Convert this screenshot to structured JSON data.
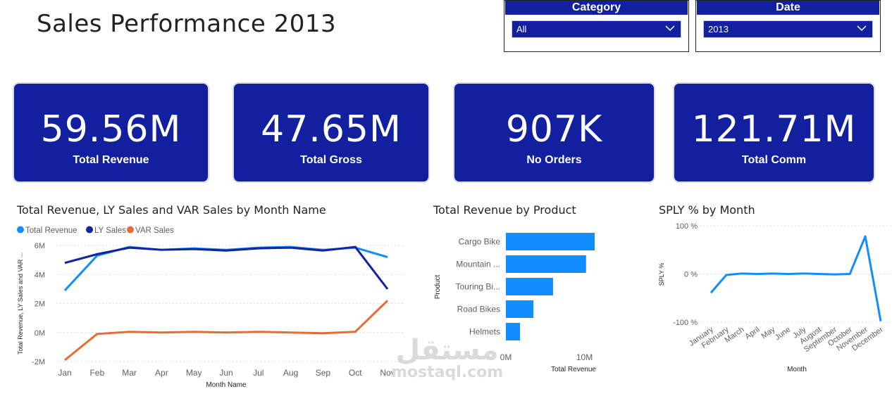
{
  "page": {
    "title": "Sales Performance 2013"
  },
  "slicers": [
    {
      "header": "Category",
      "value": "All"
    },
    {
      "header": "Date",
      "value": "2013"
    }
  ],
  "cards": [
    {
      "value": "59.56M",
      "label": "Total Revenue"
    },
    {
      "value": "47.65M",
      "label": "Total Gross"
    },
    {
      "value": "907K",
      "label": "No Orders"
    },
    {
      "value": "121.71M",
      "label": "Total Comm"
    }
  ],
  "colors": {
    "card_bg": "#1220a0",
    "total_revenue": "#118dff",
    "ly_sales": "#12239e",
    "var_sales": "#e66c37",
    "bar": "#118dff",
    "sply": "#118dff"
  },
  "chart_data": [
    {
      "type": "line",
      "title": "Total Revenue, LY Sales and VAR Sales by Month Name",
      "xlabel": "Month Name",
      "ylabel": "Total Revenue, LY Sales and VAR ...",
      "categories": [
        "Jan",
        "Feb",
        "Mar",
        "Apr",
        "May",
        "Jun",
        "Jul",
        "Aug",
        "Sep",
        "Oct",
        "Nov"
      ],
      "yticks": [
        "6M",
        "4M",
        "2M",
        "0M",
        "-2M"
      ],
      "ylim": [
        -2,
        6
      ],
      "legend": "top-left",
      "grid": true,
      "series": [
        {
          "name": "Total Revenue",
          "color": "#118dff",
          "values": [
            2.9,
            5.3,
            5.9,
            5.7,
            5.8,
            5.7,
            5.85,
            5.9,
            5.7,
            5.85,
            5.2
          ]
        },
        {
          "name": "LY Sales",
          "color": "#12239e",
          "values": [
            4.8,
            5.4,
            5.85,
            5.7,
            5.75,
            5.65,
            5.8,
            5.85,
            5.65,
            5.9,
            3.0
          ]
        },
        {
          "name": "VAR Sales",
          "color": "#e66c37",
          "values": [
            -1.9,
            -0.1,
            0.05,
            0.0,
            0.05,
            0.0,
            0.05,
            0.0,
            -0.05,
            0.05,
            2.2
          ]
        }
      ]
    },
    {
      "type": "bar",
      "orientation": "horizontal",
      "title": "Total Revenue by Product",
      "xlabel": "Total Revenue",
      "ylabel": "Product",
      "categories": [
        "Cargo Bike",
        "Mountain ...",
        "Touring Bi...",
        "Road Bikes",
        "Helmets"
      ],
      "values": [
        11.3,
        10.2,
        6.0,
        3.5,
        1.8
      ],
      "xticks": [
        "0M",
        "10M"
      ],
      "xlim": [
        0,
        13
      ],
      "color": "#118dff"
    },
    {
      "type": "line",
      "title": "SPLY % by Month",
      "xlabel": "Month",
      "ylabel": "SPLY %",
      "categories": [
        "January",
        "February",
        "March",
        "April",
        "May",
        "June",
        "July",
        "August",
        "September",
        "October",
        "November",
        "December"
      ],
      "yticks": [
        "100 %",
        "0 %",
        "-100 %"
      ],
      "ylim": [
        -100,
        100
      ],
      "grid": true,
      "series": [
        {
          "name": "SPLY %",
          "color": "#118dff",
          "values": [
            -39,
            -2,
            1,
            0,
            1,
            0,
            1,
            0,
            -1,
            0,
            78,
            -98
          ]
        }
      ]
    }
  ],
  "watermark": {
    "arabic": "مستقل",
    "latin": "mostaql.com"
  }
}
